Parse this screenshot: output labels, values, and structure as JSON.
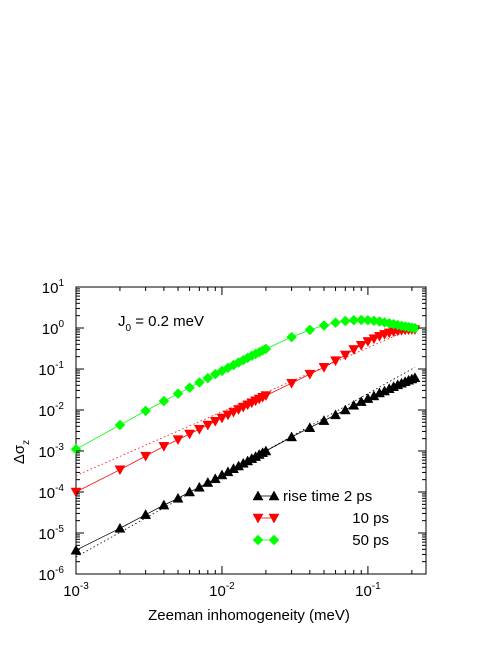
{
  "chart_data": {
    "type": "scatter",
    "xlabel": "Zeeman inhomogeneity (meV)",
    "ylabel_base": "Δσ",
    "ylabel_sub": "z",
    "annotation": {
      "base": "J",
      "sub": "0",
      "rest": " = 0.2 meV"
    },
    "x_scale": "log",
    "y_scale": "log",
    "xlim": [
      0.001,
      0.25
    ],
    "ylim": [
      1e-06,
      10
    ],
    "x_ticks": [
      {
        "value": 0.001,
        "base": "10",
        "exp": "-3"
      },
      {
        "value": 0.01,
        "base": "10",
        "exp": "-2"
      },
      {
        "value": 0.1,
        "base": "10",
        "exp": "-1"
      }
    ],
    "y_ticks": [
      {
        "value": 1e-06,
        "base": "10",
        "exp": "-6"
      },
      {
        "value": 1e-05,
        "base": "10",
        "exp": "-5"
      },
      {
        "value": 0.0001,
        "base": "10",
        "exp": "-4"
      },
      {
        "value": 0.001,
        "base": "10",
        "exp": "-3"
      },
      {
        "value": 0.01,
        "base": "10",
        "exp": "-2"
      },
      {
        "value": 0.1,
        "base": "10",
        "exp": "-1"
      },
      {
        "value": 1,
        "base": "10",
        "exp": "0"
      },
      {
        "value": 10,
        "base": "10",
        "exp": "1"
      }
    ],
    "legend_position": "bottom-right",
    "series": [
      {
        "name": "rise time 2 ps",
        "color": "#000000",
        "marker": "triangle-up",
        "x_range": [
          0.001,
          0.21
        ],
        "points": [
          [
            0.001,
            3.8e-06
          ],
          [
            0.002,
            1.3e-05
          ],
          [
            0.003,
            2.8e-05
          ],
          [
            0.004,
            4.8e-05
          ],
          [
            0.005,
            7e-05
          ],
          [
            0.006,
            0.0001
          ],
          [
            0.007,
            0.00013
          ],
          [
            0.008,
            0.00017
          ],
          [
            0.009,
            0.00021
          ],
          [
            0.01,
            0.00026
          ],
          [
            0.011,
            0.00031
          ],
          [
            0.012,
            0.00037
          ],
          [
            0.013,
            0.00043
          ],
          [
            0.014,
            0.0005
          ],
          [
            0.015,
            0.00057
          ],
          [
            0.016,
            0.00065
          ],
          [
            0.017,
            0.00073
          ],
          [
            0.018,
            0.00082
          ],
          [
            0.019,
            0.00091
          ],
          [
            0.02,
            0.001
          ],
          [
            0.03,
            0.0022
          ],
          [
            0.04,
            0.0037
          ],
          [
            0.05,
            0.0055
          ],
          [
            0.06,
            0.0076
          ],
          [
            0.07,
            0.01
          ],
          [
            0.08,
            0.013
          ],
          [
            0.09,
            0.016
          ],
          [
            0.1,
            0.019
          ],
          [
            0.11,
            0.022
          ],
          [
            0.12,
            0.026
          ],
          [
            0.13,
            0.029
          ],
          [
            0.14,
            0.033
          ],
          [
            0.15,
            0.037
          ],
          [
            0.16,
            0.041
          ],
          [
            0.17,
            0.045
          ],
          [
            0.18,
            0.049
          ],
          [
            0.19,
            0.053
          ],
          [
            0.2,
            0.057
          ],
          [
            0.21,
            0.061
          ]
        ],
        "reference_line": {
          "y_at_xmin": 2.6e-06,
          "y_at_xmax": 0.11
        }
      },
      {
        "name": "10 ps",
        "color": "#ff0000",
        "marker": "triangle-down",
        "x_range": [
          0.001,
          0.21
        ],
        "points": [
          [
            0.001,
            0.0001
          ],
          [
            0.002,
            0.00035
          ],
          [
            0.003,
            0.00075
          ],
          [
            0.004,
            0.0013
          ],
          [
            0.005,
            0.0019
          ],
          [
            0.006,
            0.0026
          ],
          [
            0.007,
            0.0034
          ],
          [
            0.008,
            0.0043
          ],
          [
            0.009,
            0.0053
          ],
          [
            0.01,
            0.0064
          ],
          [
            0.011,
            0.0076
          ],
          [
            0.012,
            0.0089
          ],
          [
            0.013,
            0.0103
          ],
          [
            0.014,
            0.0118
          ],
          [
            0.015,
            0.0134
          ],
          [
            0.016,
            0.015
          ],
          [
            0.017,
            0.0168
          ],
          [
            0.018,
            0.0186
          ],
          [
            0.019,
            0.0205
          ],
          [
            0.02,
            0.0225
          ],
          [
            0.03,
            0.045
          ],
          [
            0.04,
            0.075
          ],
          [
            0.05,
            0.11
          ],
          [
            0.06,
            0.16
          ],
          [
            0.07,
            0.22
          ],
          [
            0.08,
            0.3
          ],
          [
            0.09,
            0.38
          ],
          [
            0.1,
            0.47
          ],
          [
            0.11,
            0.55
          ],
          [
            0.12,
            0.63
          ],
          [
            0.13,
            0.7
          ],
          [
            0.14,
            0.76
          ],
          [
            0.15,
            0.81
          ],
          [
            0.16,
            0.85
          ],
          [
            0.17,
            0.88
          ],
          [
            0.18,
            0.9
          ],
          [
            0.19,
            0.91
          ],
          [
            0.2,
            0.92
          ],
          [
            0.21,
            0.92
          ]
        ],
        "reference_line": {
          "y_at_xmin": 0.00025,
          "y_at_xmax": 1.05
        }
      },
      {
        "name": "50 ps",
        "color": "#00ff00",
        "marker": "diamond",
        "x_range": [
          0.001,
          0.21
        ],
        "points": [
          [
            0.001,
            0.0011
          ],
          [
            0.002,
            0.0043
          ],
          [
            0.003,
            0.0095
          ],
          [
            0.004,
            0.0165
          ],
          [
            0.005,
            0.025
          ],
          [
            0.006,
            0.035
          ],
          [
            0.007,
            0.047
          ],
          [
            0.008,
            0.06
          ],
          [
            0.009,
            0.075
          ],
          [
            0.01,
            0.09
          ],
          [
            0.011,
            0.107
          ],
          [
            0.012,
            0.125
          ],
          [
            0.013,
            0.145
          ],
          [
            0.014,
            0.165
          ],
          [
            0.015,
            0.187
          ],
          [
            0.016,
            0.21
          ],
          [
            0.017,
            0.233
          ],
          [
            0.018,
            0.257
          ],
          [
            0.019,
            0.282
          ],
          [
            0.02,
            0.31
          ],
          [
            0.03,
            0.6
          ],
          [
            0.04,
            0.9
          ],
          [
            0.05,
            1.15
          ],
          [
            0.06,
            1.35
          ],
          [
            0.07,
            1.48
          ],
          [
            0.08,
            1.55
          ],
          [
            0.09,
            1.57
          ],
          [
            0.1,
            1.55
          ],
          [
            0.11,
            1.5
          ],
          [
            0.12,
            1.44
          ],
          [
            0.13,
            1.37
          ],
          [
            0.14,
            1.3
          ],
          [
            0.15,
            1.24
          ],
          [
            0.16,
            1.18
          ],
          [
            0.17,
            1.13
          ],
          [
            0.18,
            1.09
          ],
          [
            0.19,
            1.05
          ],
          [
            0.2,
            1.02
          ],
          [
            0.21,
            0.99
          ]
        ],
        "reference_line": null
      }
    ]
  }
}
